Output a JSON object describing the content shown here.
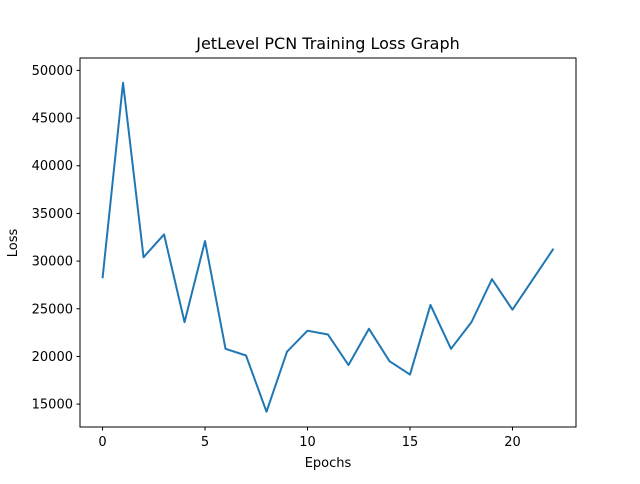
{
  "chart_data": {
    "type": "line",
    "title": "JetLevel PCN Training Loss Graph",
    "xlabel": "Epochs",
    "ylabel": "Loss",
    "xlim": [
      -1.1,
      23.1
    ],
    "ylim": [
      12600,
      51300
    ],
    "xticks": [
      0,
      5,
      10,
      15,
      20
    ],
    "yticks": [
      15000,
      20000,
      25000,
      30000,
      35000,
      40000,
      45000,
      50000
    ],
    "grid": false,
    "line_color": "#1f77b4",
    "x": [
      0,
      1,
      2,
      3,
      4,
      5,
      6,
      7,
      8,
      9,
      10,
      11,
      12,
      13,
      14,
      15,
      16,
      17,
      18,
      19,
      20,
      21,
      22
    ],
    "values": [
      28200,
      48700,
      30400,
      32800,
      23600,
      32100,
      20800,
      20100,
      14200,
      20500,
      22700,
      22300,
      19100,
      22900,
      19500,
      18100,
      25400,
      20800,
      23600,
      28100,
      24900,
      28100,
      31300
    ]
  }
}
